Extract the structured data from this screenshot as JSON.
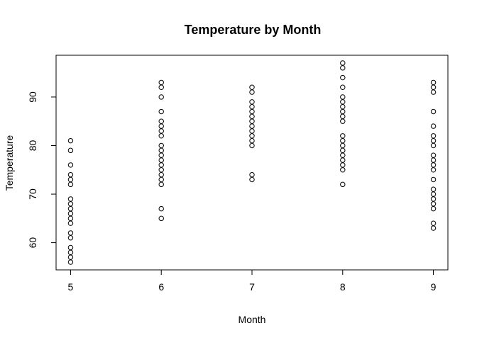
{
  "chart_data": {
    "type": "scatter",
    "title": "Temperature by Month",
    "xlabel": "Month",
    "ylabel": "Temperature",
    "x_ticks": [
      5,
      6,
      7,
      8,
      9
    ],
    "y_ticks": [
      60,
      70,
      80,
      90
    ],
    "xlim": [
      4.84,
      9.16
    ],
    "ylim": [
      54.4,
      98.6
    ],
    "grid": false,
    "marker": "open-circle",
    "colors": {
      "point_stroke": "#000000",
      "axis": "#000000",
      "background": "#ffffff"
    },
    "series": [
      {
        "points": [
          [
            5,
            56
          ],
          [
            5,
            57
          ],
          [
            5,
            58
          ],
          [
            5,
            59
          ],
          [
            5,
            61
          ],
          [
            5,
            62
          ],
          [
            5,
            64
          ],
          [
            5,
            65
          ],
          [
            5,
            66
          ],
          [
            5,
            67
          ],
          [
            5,
            68
          ],
          [
            5,
            69
          ],
          [
            5,
            72
          ],
          [
            5,
            73
          ],
          [
            5,
            74
          ],
          [
            5,
            76
          ],
          [
            5,
            79
          ],
          [
            5,
            81
          ],
          [
            6,
            65
          ],
          [
            6,
            67
          ],
          [
            6,
            72
          ],
          [
            6,
            73
          ],
          [
            6,
            74
          ],
          [
            6,
            75
          ],
          [
            6,
            76
          ],
          [
            6,
            77
          ],
          [
            6,
            78
          ],
          [
            6,
            79
          ],
          [
            6,
            80
          ],
          [
            6,
            82
          ],
          [
            6,
            83
          ],
          [
            6,
            84
          ],
          [
            6,
            85
          ],
          [
            6,
            87
          ],
          [
            6,
            90
          ],
          [
            6,
            92
          ],
          [
            6,
            93
          ],
          [
            7,
            73
          ],
          [
            7,
            74
          ],
          [
            7,
            80
          ],
          [
            7,
            81
          ],
          [
            7,
            82
          ],
          [
            7,
            83
          ],
          [
            7,
            84
          ],
          [
            7,
            85
          ],
          [
            7,
            86
          ],
          [
            7,
            87
          ],
          [
            7,
            88
          ],
          [
            7,
            89
          ],
          [
            7,
            91
          ],
          [
            7,
            92
          ],
          [
            8,
            72
          ],
          [
            8,
            75
          ],
          [
            8,
            76
          ],
          [
            8,
            77
          ],
          [
            8,
            78
          ],
          [
            8,
            79
          ],
          [
            8,
            80
          ],
          [
            8,
            81
          ],
          [
            8,
            82
          ],
          [
            8,
            85
          ],
          [
            8,
            86
          ],
          [
            8,
            87
          ],
          [
            8,
            88
          ],
          [
            8,
            89
          ],
          [
            8,
            90
          ],
          [
            8,
            92
          ],
          [
            8,
            94
          ],
          [
            8,
            96
          ],
          [
            8,
            97
          ],
          [
            9,
            63
          ],
          [
            9,
            64
          ],
          [
            9,
            67
          ],
          [
            9,
            68
          ],
          [
            9,
            69
          ],
          [
            9,
            70
          ],
          [
            9,
            71
          ],
          [
            9,
            73
          ],
          [
            9,
            75
          ],
          [
            9,
            76
          ],
          [
            9,
            77
          ],
          [
            9,
            78
          ],
          [
            9,
            80
          ],
          [
            9,
            81
          ],
          [
            9,
            82
          ],
          [
            9,
            84
          ],
          [
            9,
            87
          ],
          [
            9,
            91
          ],
          [
            9,
            92
          ],
          [
            9,
            93
          ]
        ]
      }
    ]
  }
}
